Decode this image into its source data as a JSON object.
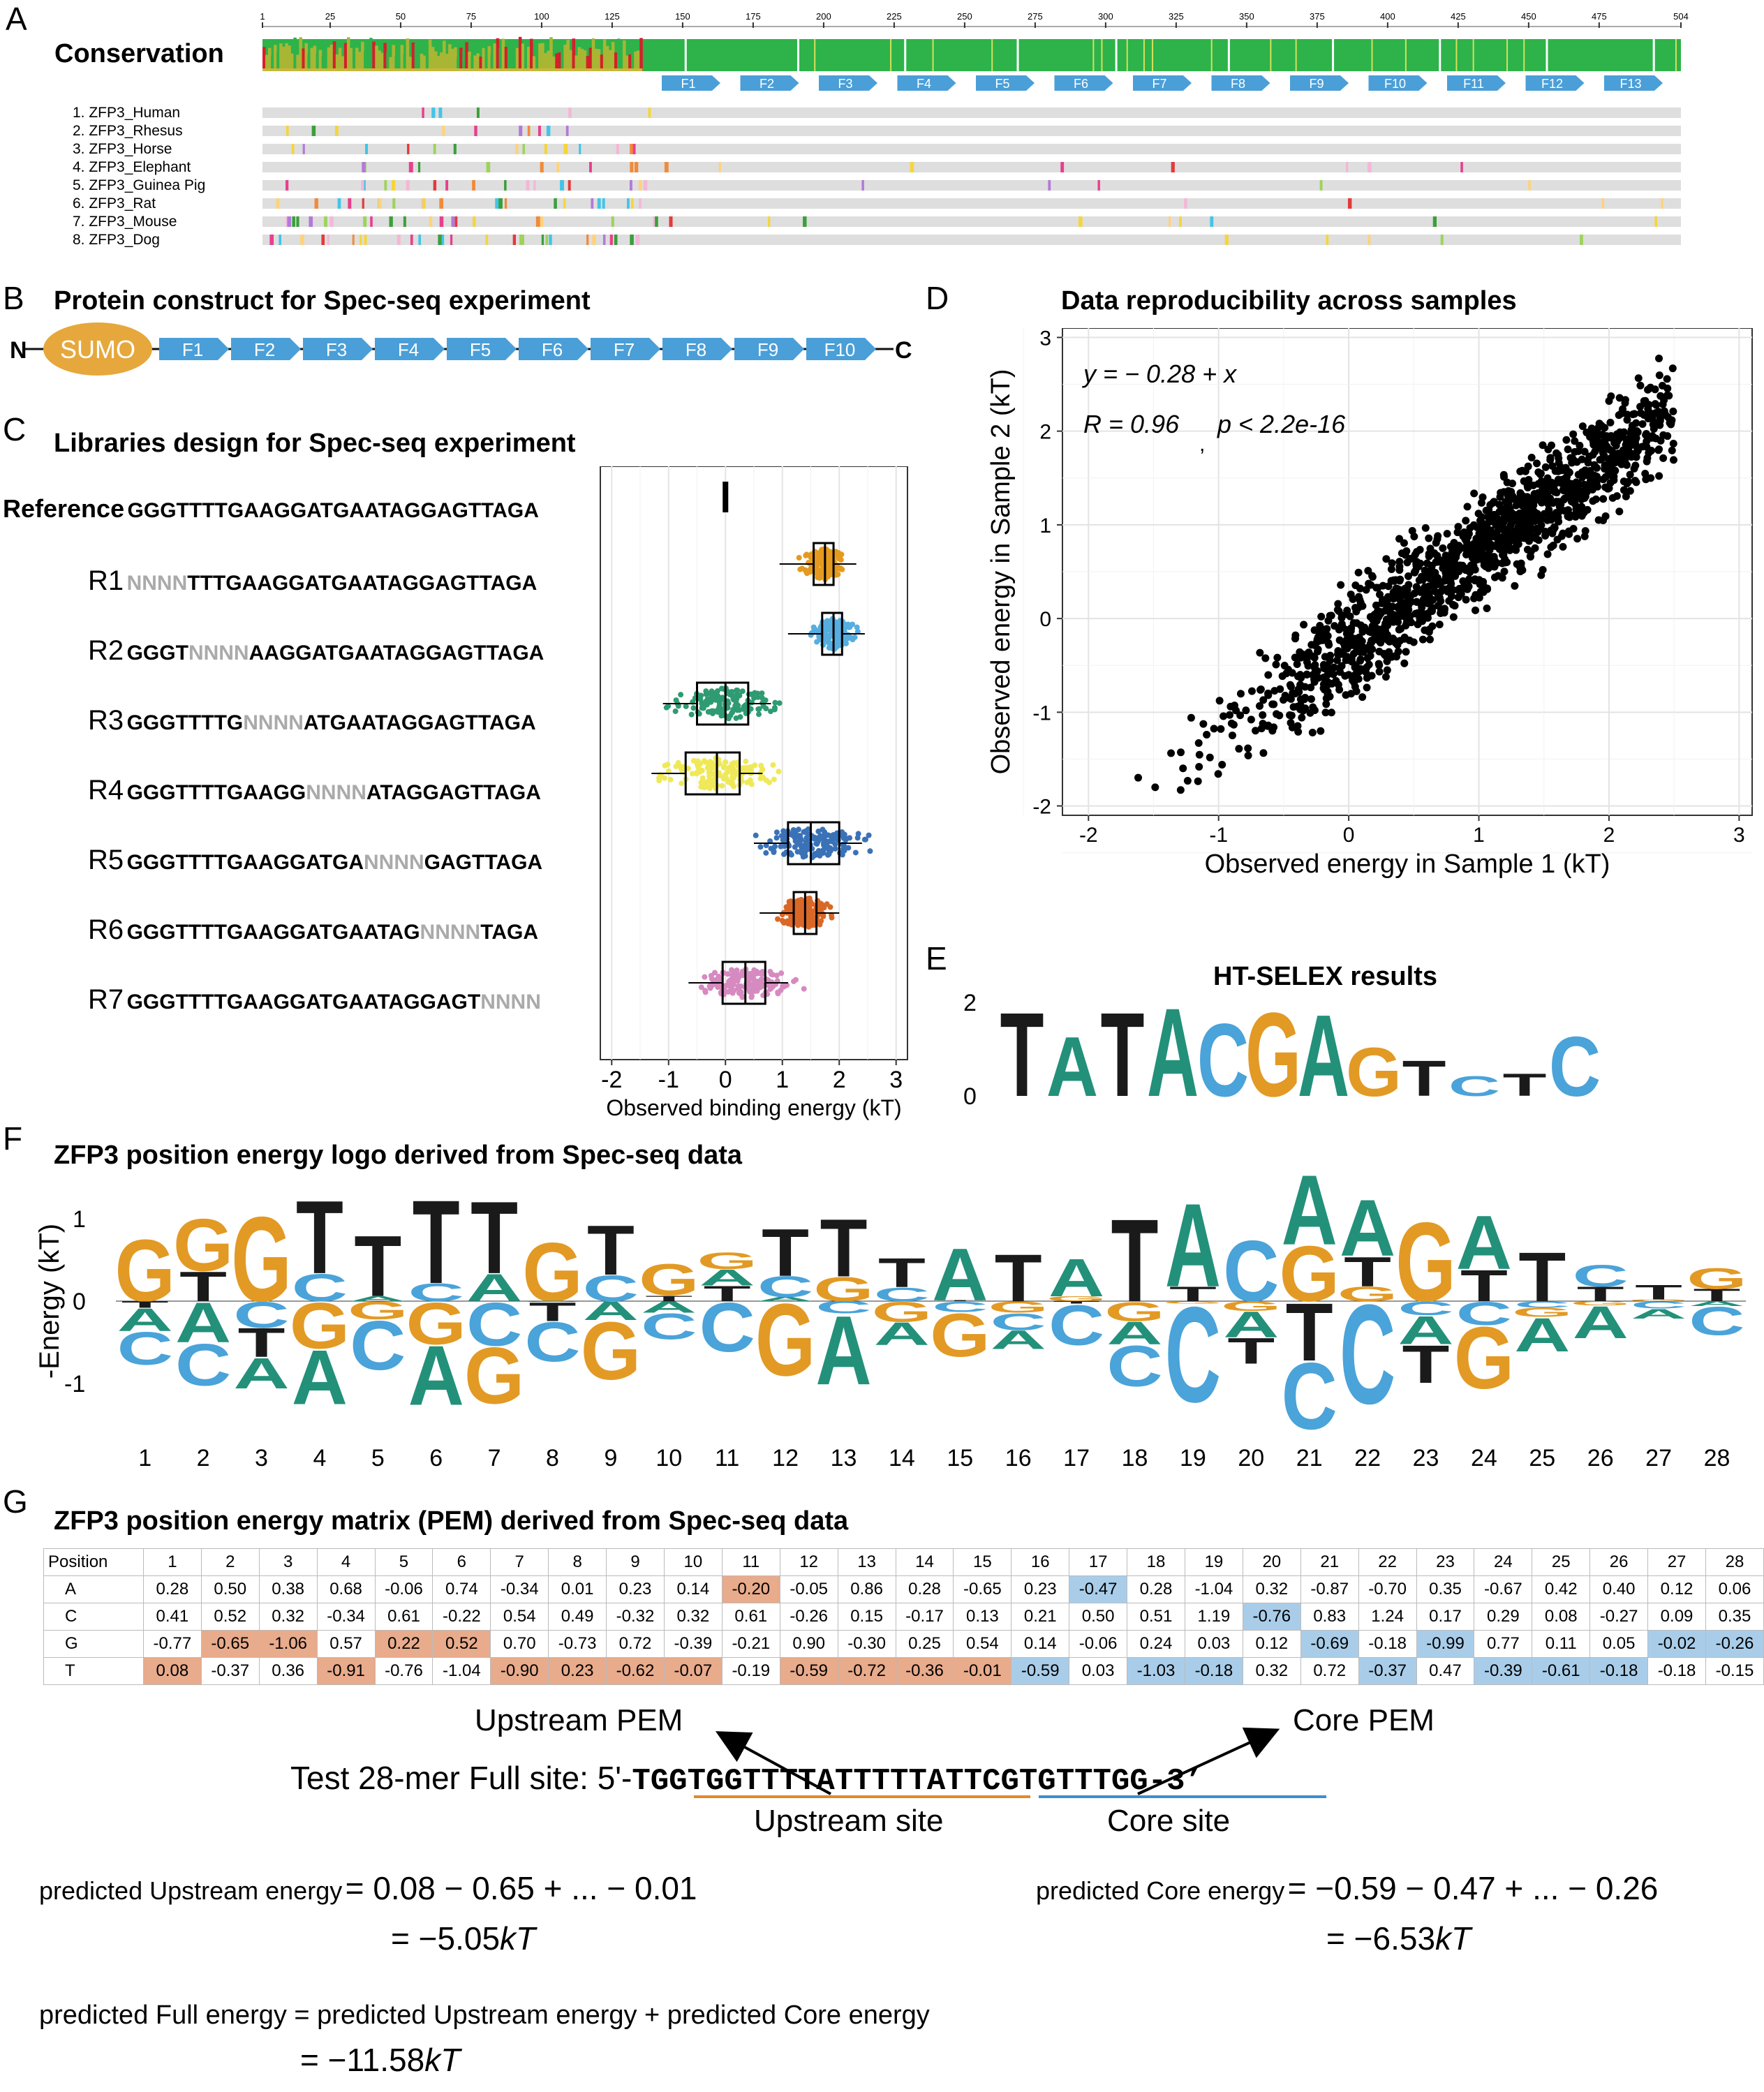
{
  "panelA": {
    "letter": "A",
    "title": "Conservation",
    "ruler": [
      "1",
      "25",
      "50",
      "75",
      "100",
      "125",
      "150",
      "175",
      "200",
      "225",
      "250",
      "275",
      "300",
      "325",
      "350",
      "375",
      "400",
      "425",
      "450",
      "475",
      "504"
    ],
    "fingers": [
      "F1",
      "F2",
      "F3",
      "F4",
      "F5",
      "F6",
      "F7",
      "F8",
      "F9",
      "F10",
      "F11",
      "F12",
      "F13"
    ],
    "species": [
      "1. ZFP3_Human",
      "2. ZFP3_Rhesus",
      "3. ZFP3_Horse",
      "4. ZFP3_Elephant",
      "5. ZFP3_Guinea Pig",
      "6. ZFP3_Rat",
      "7. ZFP3_Mouse",
      "8. ZFP3_Dog"
    ],
    "colors": {
      "conserved": "#2db34a",
      "partial": "#a8b634",
      "low": "#d4202a"
    }
  },
  "panelB": {
    "letter": "B",
    "title": "Protein construct for Spec-seq experiment",
    "n": "N",
    "c": "C",
    "sumo": "SUMO",
    "fingers": [
      "F1",
      "F2",
      "F3",
      "F4",
      "F5",
      "F6",
      "F7",
      "F8",
      "F9",
      "F10"
    ],
    "colors": {
      "sumo": "#e6a83c",
      "finger": "#4a9fd8"
    }
  },
  "panelC": {
    "letter": "C",
    "title": "Libraries design for Spec-seq experiment",
    "xlabel": "Observed binding energy (kT)",
    "xticks": [
      "-2",
      "-1",
      "0",
      "1",
      "2",
      "3"
    ],
    "reference": {
      "label": "Reference",
      "seq": "GGGTTTTGAAGGATGAATAGGAGTTAGA"
    },
    "libraries": [
      {
        "label": "R1",
        "pre": "",
        "n": "NNNN",
        "post": "TTTGAAGGATGAATAGGAGTTAGA",
        "color": "#e59a1f",
        "median": 1.75,
        "q1": 1.55,
        "q3": 1.9
      },
      {
        "label": "R2",
        "pre": "GGGT",
        "n": "NNNN",
        "post": "AAGGATGAATAGGAGTTAGA",
        "color": "#56aee0",
        "median": 1.9,
        "q1": 1.7,
        "q3": 2.05
      },
      {
        "label": "R3",
        "pre": "GGGTTTTG",
        "n": "NNNN",
        "post": "ATGAATAGGAGTTAGA",
        "color": "#2f9b73",
        "median": 0.0,
        "q1": -0.5,
        "q3": 0.4
      },
      {
        "label": "R4",
        "pre": "GGGTTTTGAAGG",
        "n": "NNNN",
        "post": "ATAGGAGTTAGA",
        "color": "#efe95a",
        "median": -0.15,
        "q1": -0.7,
        "q3": 0.25
      },
      {
        "label": "R5",
        "pre": "GGGTTTTGAAGGATGA",
        "n": "NNNN",
        "post": "GAGTTAGA",
        "color": "#3a72b8",
        "median": 1.5,
        "q1": 1.1,
        "q3": 2.0
      },
      {
        "label": "R6",
        "pre": "GGGTTTTGAAGGATGAATAG",
        "n": "NNNN",
        "post": "TAGA",
        "color": "#d96828",
        "median": 1.4,
        "q1": 1.2,
        "q3": 1.6
      },
      {
        "label": "R7",
        "pre": "GGGTTTTGAAGGATGAATAGGAGT",
        "n": "NNNN",
        "post": "",
        "color": "#d68ac0",
        "median": 0.35,
        "q1": -0.05,
        "q3": 0.7
      }
    ]
  },
  "panelD": {
    "letter": "D",
    "title": "Data reproducibility across samples",
    "eq1": "y = − 0.28 +  x",
    "eq2_r": "R = 0.96",
    "eq2_p": "p < 2.2e-16",
    "eq2_sep": ",",
    "xlabel": "Observed energy in Sample 1 (kT)",
    "ylabel": "Observed energy in Sample 2 (kT)",
    "xticks": [
      "-2",
      "-1",
      "0",
      "1",
      "2",
      "3"
    ],
    "yticks": [
      "-2",
      "-1",
      "0",
      "1",
      "2",
      "3"
    ],
    "chart_data": {
      "type": "scatter",
      "xlim": [
        -2.2,
        3.1
      ],
      "ylim": [
        -2.1,
        3.1
      ],
      "slope": 1.0,
      "intercept": -0.28,
      "r": 0.96
    }
  },
  "panelE": {
    "letter": "E",
    "title": "HT-SELEX results",
    "yticks": [
      "2",
      "0"
    ],
    "logo": [
      {
        "ch": "T",
        "h": 1.9,
        "c": "#1a1a1a"
      },
      {
        "ch": "A",
        "h": 1.35,
        "c": "#23907a"
      },
      {
        "ch": "T",
        "h": 1.9,
        "c": "#1a1a1a"
      },
      {
        "ch": "A",
        "h": 2.0,
        "c": "#23907a"
      },
      {
        "ch": "C",
        "h": 1.65,
        "c": "#4aa3d9"
      },
      {
        "ch": "G",
        "h": 1.9,
        "c": "#e29a25"
      },
      {
        "ch": "A",
        "h": 1.85,
        "c": "#23907a"
      },
      {
        "ch": "G",
        "h": 1.1,
        "c": "#e29a25"
      },
      {
        "ch": "T",
        "h": 0.8,
        "c": "#1a1a1a"
      },
      {
        "ch": "C",
        "h": 0.45,
        "c": "#4aa3d9"
      },
      {
        "ch": "T",
        "h": 0.5,
        "c": "#1a1a1a"
      },
      {
        "ch": "C",
        "h": 1.35,
        "c": "#4aa3d9"
      }
    ]
  },
  "panelF": {
    "letter": "F",
    "title": "ZFP3 position energy logo derived from Spec-seq data",
    "ylabel": "-Energy (kT)",
    "yticks": [
      "1",
      "0",
      "-1"
    ],
    "positions": [
      "1",
      "2",
      "3",
      "4",
      "5",
      "6",
      "7",
      "8",
      "9",
      "10",
      "11",
      "12",
      "13",
      "14",
      "15",
      "16",
      "17",
      "18",
      "19",
      "20",
      "21",
      "22",
      "23",
      "24",
      "25",
      "26",
      "27",
      "28"
    ],
    "colors": {
      "A": "#23907a",
      "C": "#4aa3d9",
      "G": "#e29a25",
      "T": "#1a1a1a"
    }
  },
  "panelG": {
    "letter": "G",
    "title": "ZFP3 position energy matrix (PEM) derived from Spec-seq data",
    "header": "Position",
    "rows": [
      {
        "base": "A",
        "vals": [
          "0.28",
          "0.50",
          "0.38",
          "0.68",
          "-0.06",
          "0.74",
          "-0.34",
          "0.01",
          "0.23",
          "0.14",
          "-0.20",
          "-0.05",
          "0.86",
          "0.28",
          "-0.65",
          "0.23",
          "-0.47",
          "0.28",
          "-1.04",
          "0.32",
          "-0.87",
          "-0.70",
          "0.35",
          "-0.67",
          "0.42",
          "0.40",
          "0.12",
          "0.06"
        ]
      },
      {
        "base": "C",
        "vals": [
          "0.41",
          "0.52",
          "0.32",
          "-0.34",
          "0.61",
          "-0.22",
          "0.54",
          "0.49",
          "-0.32",
          "0.32",
          "0.61",
          "-0.26",
          "0.15",
          "-0.17",
          "0.13",
          "0.21",
          "0.50",
          "0.51",
          "1.19",
          "-0.76",
          "0.83",
          "1.24",
          "0.17",
          "0.29",
          "0.08",
          "-0.27",
          "0.09",
          "0.35"
        ]
      },
      {
        "base": "G",
        "vals": [
          "-0.77",
          "-0.65",
          "-1.06",
          "0.57",
          "0.22",
          "0.52",
          "0.70",
          "-0.73",
          "0.72",
          "-0.39",
          "-0.21",
          "0.90",
          "-0.30",
          "0.25",
          "0.54",
          "0.14",
          "-0.06",
          "0.24",
          "0.03",
          "0.12",
          "-0.69",
          "-0.18",
          "-0.99",
          "0.77",
          "0.11",
          "0.05",
          "-0.02",
          "-0.26"
        ]
      },
      {
        "base": "T",
        "vals": [
          "0.08",
          "-0.37",
          "0.36",
          "-0.91",
          "-0.76",
          "-1.04",
          "-0.90",
          "0.23",
          "-0.62",
          "-0.07",
          "-0.19",
          "-0.59",
          "-0.72",
          "-0.36",
          "-0.01",
          "-0.59",
          "0.03",
          "-1.03",
          "-0.18",
          "0.32",
          "0.72",
          "-0.37",
          "0.47",
          "-0.39",
          "-0.61",
          "-0.18",
          "-0.18",
          "-0.15"
        ]
      }
    ],
    "upstream_pem": "Upstream PEM",
    "core_pem": "Core PEM",
    "test_label": "Test 28-mer Full site:",
    "test_5p": "5'-",
    "test_up": "TGGTGGTTTTATTTT",
    "test_core": "TATTCGTGTTTGG",
    "test_3p": "-3’",
    "upstream_site": "Upstream site",
    "core_site": "Core site",
    "up_eq_label": "predicted Upstream energy",
    "up_eq_expr": "= 0.08 − 0.65 + ... − 0.01",
    "up_eq_res": "= −5.05",
    "core_eq_label": "predicted Core energy",
    "core_eq_expr": "= −0.59 − 0.47 + ... − 0.26",
    "core_eq_res": "= −6.53",
    "full_eq": "predicted Full energy = predicted Upstream energy + predicted Core energy",
    "full_eq_res": "= −11.58",
    "kt": "kT"
  }
}
